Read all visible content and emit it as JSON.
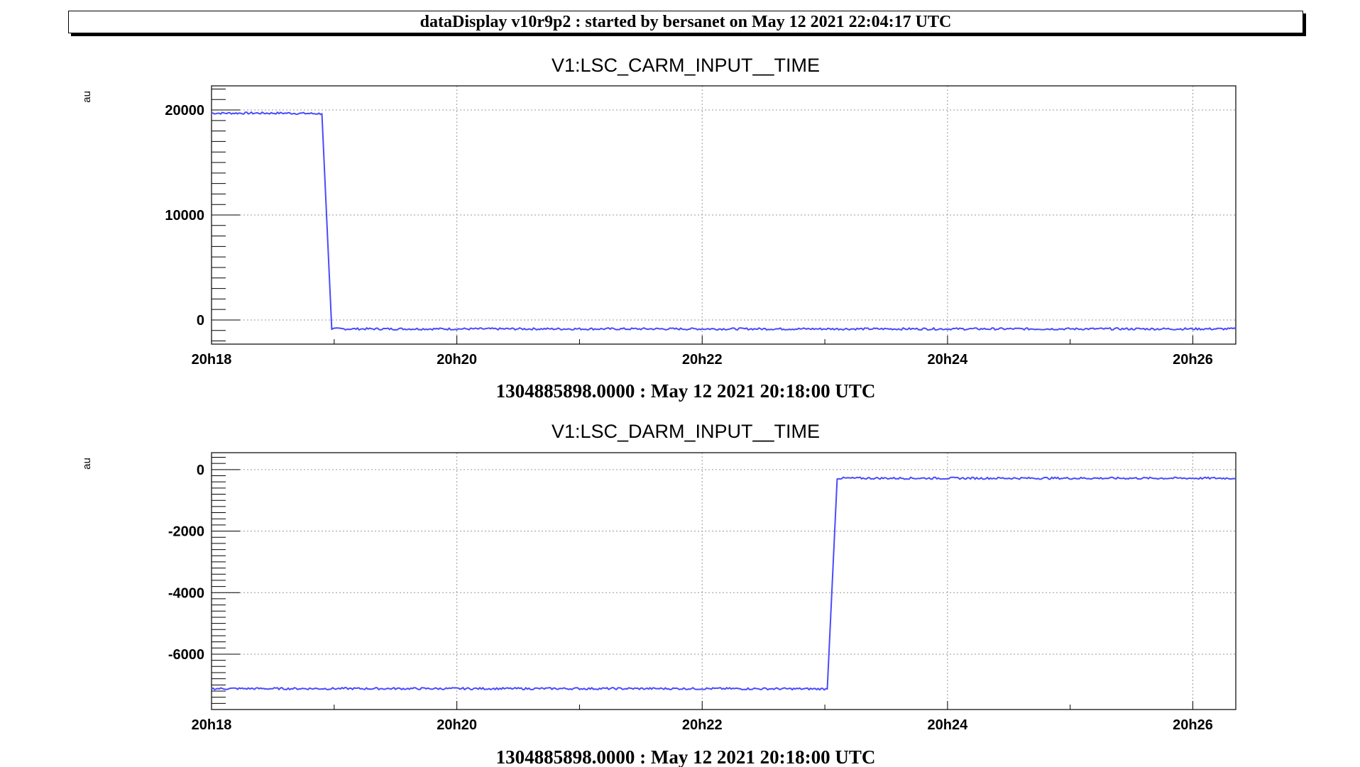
{
  "header": {
    "title": "dataDisplay v10r9p2 : started by bersanet on May 12 2021 22:04:17 UTC"
  },
  "colors": {
    "series": "#4a4aff",
    "grid": "#9a9a9a",
    "frame": "#000000"
  },
  "chart_data": [
    {
      "type": "line",
      "title": "V1:LSC_CARM_INPUT__TIME",
      "ylabel": "au",
      "xlabel": "1304885898.0000 : May 12 2021 20:18:00 UTC",
      "x_unit": "minutes after 20h18",
      "xlim": [
        0,
        8.35
      ],
      "ylim": [
        -2300,
        22300
      ],
      "x_ticks": [
        {
          "value": 0,
          "label": "20h18"
        },
        {
          "value": 2,
          "label": "20h20"
        },
        {
          "value": 4,
          "label": "20h22"
        },
        {
          "value": 6,
          "label": "20h24"
        },
        {
          "value": 8,
          "label": "20h26"
        }
      ],
      "y_ticks": [
        {
          "value": 0,
          "label": "0"
        },
        {
          "value": 10000,
          "label": "10000"
        },
        {
          "value": 20000,
          "label": "20000"
        }
      ],
      "grid": true,
      "series": [
        {
          "x": [
            0,
            0.3,
            0.6,
            0.9,
            0.98,
            1.5,
            2.0,
            3.0,
            4.0,
            5.0,
            6.0,
            7.0,
            8.0,
            8.35
          ],
          "y": [
            19700,
            19700,
            19700,
            19650,
            -850,
            -850,
            -850,
            -850,
            -850,
            -850,
            -850,
            -850,
            -850,
            -850
          ]
        }
      ]
    },
    {
      "type": "line",
      "title": "V1:LSC_DARM_INPUT__TIME",
      "ylabel": "au",
      "xlabel": "1304885898.0000 : May 12 2021 20:18:00 UTC",
      "x_unit": "minutes after 20h18",
      "xlim": [
        0,
        8.35
      ],
      "ylim": [
        -7800,
        550
      ],
      "x_ticks": [
        {
          "value": 0,
          "label": "20h18"
        },
        {
          "value": 2,
          "label": "20h20"
        },
        {
          "value": 4,
          "label": "20h22"
        },
        {
          "value": 6,
          "label": "20h24"
        },
        {
          "value": 8,
          "label": "20h26"
        }
      ],
      "y_ticks": [
        {
          "value": -6000,
          "label": "-6000"
        },
        {
          "value": -4000,
          "label": "-4000"
        },
        {
          "value": -2000,
          "label": "-2000"
        },
        {
          "value": 0,
          "label": "0"
        }
      ],
      "grid": true,
      "series": [
        {
          "x": [
            0,
            1.0,
            2.0,
            3.0,
            4.0,
            5.02,
            5.1,
            5.5,
            6.0,
            7.0,
            8.0,
            8.35
          ],
          "y": [
            -7120,
            -7120,
            -7120,
            -7120,
            -7120,
            -7130,
            -280,
            -280,
            -280,
            -280,
            -280,
            -280
          ]
        }
      ]
    }
  ]
}
